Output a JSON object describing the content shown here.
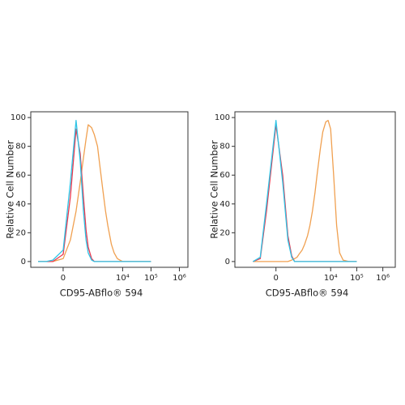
{
  "chart_data": [
    {
      "type": "line",
      "xscale": "asinh",
      "xlabel": "CD95-ABflo® 594",
      "ylabel": "Relative Cell Number",
      "x": [
        -600,
        -300,
        -150,
        0,
        100,
        200,
        300,
        400,
        500,
        600,
        800,
        1000,
        1300,
        1600,
        2000,
        2500,
        3000,
        4000,
        5000,
        6500,
        8000,
        10000,
        13000,
        17000,
        22000,
        30000,
        50000,
        100000
      ],
      "series": [
        {
          "color": "#f0a050",
          "values": [
            0,
            0,
            0,
            2,
            15,
            35,
            55,
            72,
            85,
            95,
            93,
            88,
            80,
            65,
            50,
            35,
            25,
            12,
            6,
            2,
            1,
            0,
            0,
            0,
            0,
            0,
            0,
            0
          ]
        },
        {
          "color": "#e8384f",
          "values": [
            0,
            0,
            0,
            5,
            45,
            92,
            75,
            45,
            22,
            10,
            2,
            0,
            0,
            0,
            0,
            0,
            0,
            0,
            0,
            0,
            0,
            0,
            0,
            0,
            0,
            0,
            0,
            0
          ]
        },
        {
          "color": "#2ec4e6",
          "values": [
            0,
            0,
            1,
            8,
            55,
            98,
            70,
            35,
            15,
            6,
            1,
            0,
            0,
            0,
            0,
            0,
            0,
            0,
            0,
            0,
            0,
            0,
            0,
            0,
            0,
            0,
            0,
            0
          ]
        }
      ],
      "xlim": [
        -1100,
        2000000
      ],
      "ylim": [
        -4,
        104
      ],
      "xticks": [
        0,
        {
          "value": 10000,
          "label": "10⁴"
        },
        {
          "value": 100000,
          "label": "10⁵"
        },
        {
          "value": 1000000,
          "label": "10⁶"
        }
      ],
      "yticks": [
        0,
        20,
        40,
        60,
        80,
        100
      ]
    },
    {
      "type": "line",
      "xscale": "asinh",
      "xlabel": "CD95-ABflo® 594",
      "ylabel": "Relative Cell Number",
      "x": [
        -600,
        -300,
        -150,
        0,
        100,
        200,
        300,
        400,
        500,
        600,
        800,
        1000,
        1300,
        1600,
        2000,
        2500,
        3000,
        4000,
        5000,
        6500,
        8000,
        10000,
        13000,
        17000,
        22000,
        30000,
        50000,
        100000
      ],
      "series": [
        {
          "color": "#f0a050",
          "values": [
            0,
            0,
            0,
            0,
            0,
            0,
            1,
            2,
            3,
            5,
            8,
            12,
            18,
            25,
            35,
            48,
            60,
            78,
            90,
            97,
            98,
            92,
            60,
            25,
            6,
            1,
            0,
            0
          ]
        },
        {
          "color": "#e8384f",
          "values": [
            0,
            2,
            35,
            95,
            60,
            18,
            4,
            0,
            0,
            0,
            0,
            0,
            0,
            0,
            0,
            0,
            0,
            0,
            0,
            0,
            0,
            0,
            0,
            0,
            0,
            0,
            0,
            0
          ]
        },
        {
          "color": "#2ec4e6",
          "values": [
            0,
            3,
            40,
            98,
            55,
            15,
            3,
            0,
            0,
            0,
            0,
            0,
            0,
            0,
            0,
            0,
            0,
            0,
            0,
            0,
            0,
            0,
            0,
            0,
            0,
            0,
            0,
            0
          ]
        }
      ],
      "xlim": [
        -3000,
        3000000
      ],
      "ylim": [
        -4,
        104
      ],
      "xticks": [
        0,
        {
          "value": 10000,
          "label": "10⁴"
        },
        {
          "value": 100000,
          "label": "10⁵"
        },
        {
          "value": 1000000,
          "label": "10⁶"
        }
      ],
      "yticks": [
        0,
        20,
        40,
        60,
        80,
        100
      ]
    }
  ]
}
